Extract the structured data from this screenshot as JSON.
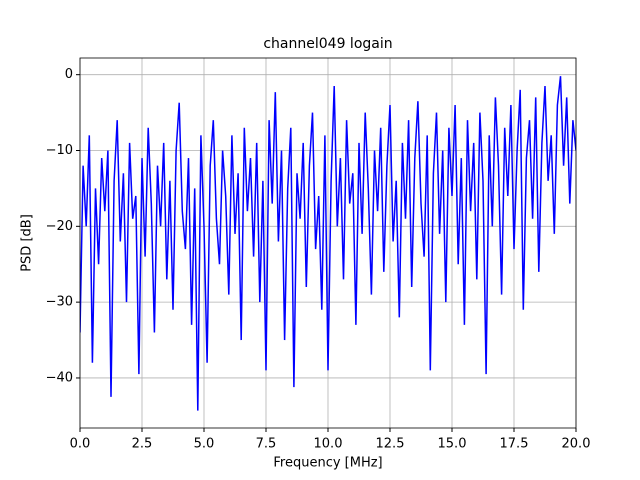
{
  "chart_data": {
    "type": "line",
    "title": "channel049 logain",
    "xlabel": "Frequency [MHz]",
    "ylabel": "PSD [dB]",
    "x": [
      0,
      0.125,
      0.25,
      0.375,
      0.5,
      0.625,
      0.75,
      0.875,
      1,
      1.125,
      1.25,
      1.375,
      1.5,
      1.625,
      1.75,
      1.875,
      2,
      2.125,
      2.25,
      2.375,
      2.5,
      2.625,
      2.75,
      2.875,
      3,
      3.125,
      3.25,
      3.375,
      3.5,
      3.625,
      3.75,
      3.875,
      4,
      4.125,
      4.25,
      4.375,
      4.5,
      4.625,
      4.75,
      4.875,
      5,
      5.125,
      5.25,
      5.375,
      5.5,
      5.625,
      5.75,
      5.875,
      6,
      6.125,
      6.25,
      6.375,
      6.5,
      6.625,
      6.75,
      6.875,
      7,
      7.125,
      7.25,
      7.375,
      7.5,
      7.625,
      7.75,
      7.875,
      8,
      8.125,
      8.25,
      8.375,
      8.5,
      8.625,
      8.75,
      8.875,
      9,
      9.125,
      9.25,
      9.375,
      9.5,
      9.625,
      9.75,
      9.875,
      10,
      10.125,
      10.25,
      10.375,
      10.5,
      10.625,
      10.75,
      10.875,
      11,
      11.125,
      11.25,
      11.375,
      11.5,
      11.625,
      11.75,
      11.875,
      12,
      12.125,
      12.25,
      12.375,
      12.5,
      12.625,
      12.75,
      12.875,
      13,
      13.125,
      13.25,
      13.375,
      13.5,
      13.625,
      13.75,
      13.875,
      14,
      14.125,
      14.25,
      14.375,
      14.5,
      14.625,
      14.75,
      14.875,
      15,
      15.125,
      15.25,
      15.375,
      15.5,
      15.625,
      15.75,
      15.875,
      16,
      16.125,
      16.25,
      16.375,
      16.5,
      16.625,
      16.75,
      16.875,
      17,
      17.125,
      17.25,
      17.375,
      17.5,
      17.625,
      17.75,
      17.875,
      18,
      18.125,
      18.25,
      18.375,
      18.5,
      18.625,
      18.75,
      18.875,
      19,
      19.125,
      19.25,
      19.375,
      19.5,
      19.625,
      19.75,
      19.875,
      20
    ],
    "series": [
      {
        "name": "PSD",
        "color": "#0000ff",
        "values": [
          -34,
          -12,
          -20,
          -8,
          -38,
          -15,
          -25,
          -11,
          -18,
          -10,
          -42.5,
          -14,
          -6,
          -22,
          -13,
          -30,
          -9,
          -19,
          -16,
          -39.5,
          -11,
          -24,
          -7,
          -17,
          -34,
          -12,
          -20,
          -9,
          -27,
          -14,
          -31,
          -10,
          -3.7,
          -18,
          -23,
          -11,
          -33,
          -15,
          -44.3,
          -8,
          -20,
          -38,
          -12,
          -6,
          -19,
          -25,
          -10,
          -16,
          -29,
          -8,
          -21,
          -13,
          -35,
          -7,
          -18,
          -11,
          -24,
          -9,
          -30,
          -14,
          -39,
          -6,
          -17,
          -2.3,
          -22,
          -10,
          -35,
          -15,
          -7,
          -41.2,
          -13,
          -19,
          -9,
          -28,
          -12,
          -5,
          -23,
          -16,
          -31,
          -8,
          -39,
          -14,
          -1.5,
          -20,
          -11,
          -27,
          -6,
          -17,
          -13,
          -33,
          -9,
          -21,
          -5,
          -15,
          -29,
          -10,
          -18,
          -7,
          -26,
          -12,
          -4,
          -22,
          -14,
          -32,
          -9,
          -19,
          -6,
          -28,
          -11,
          -3.5,
          -17,
          -24,
          -8,
          -39,
          -13,
          -5,
          -21,
          -10,
          -30,
          -7,
          -16,
          -4,
          -25,
          -11,
          -33,
          -6,
          -18,
          -9,
          -27,
          -5,
          -14,
          -39.5,
          -8,
          -20,
          -3,
          -12,
          -29,
          -7,
          -16,
          -4,
          -23,
          -10,
          -2,
          -31,
          -11,
          -6,
          -19,
          -3,
          -26,
          -9,
          -1.5,
          -14,
          -8,
          -21,
          -4,
          -0.2,
          -12,
          -3,
          -17,
          -6,
          -10
        ]
      }
    ],
    "xlim": [
      0,
      20
    ],
    "ylim": [
      -46.6,
      2.2
    ],
    "xticks": [
      {
        "value": 0,
        "label": "0.0"
      },
      2.5,
      {
        "value": 5,
        "label": "5.0"
      },
      7.5,
      {
        "value": 10,
        "label": "10.0"
      },
      12.5,
      {
        "value": 15,
        "label": "15.0"
      },
      17.5,
      {
        "value": 20,
        "label": "20.0"
      }
    ],
    "yticks": [
      {
        "value": -40,
        "label": "−40"
      },
      {
        "value": -30,
        "label": "−30"
      },
      {
        "value": -20,
        "label": "−20"
      },
      {
        "value": -10,
        "label": "−10"
      },
      0
    ],
    "grid": true
  }
}
